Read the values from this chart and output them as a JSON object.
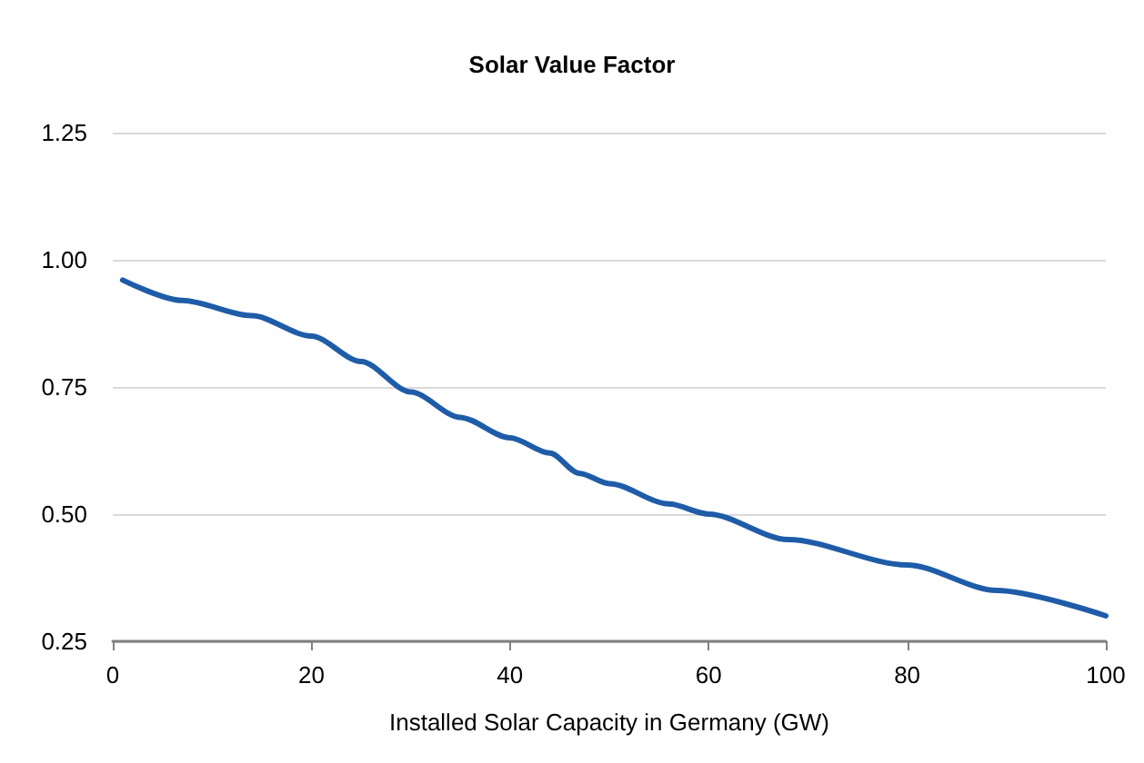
{
  "chart_data": {
    "type": "line",
    "title": "Solar Value Factor",
    "xlabel": "Installed Solar Capacity in Germany (GW)",
    "x": [
      1,
      7,
      14,
      20,
      25,
      30,
      35,
      40,
      44,
      47,
      50,
      56,
      60,
      68,
      80,
      89,
      100
    ],
    "series": [
      {
        "color": "#1f5ca8",
        "values": [
          0.96,
          0.92,
          0.89,
          0.85,
          0.8,
          0.74,
          0.69,
          0.65,
          0.62,
          0.58,
          0.56,
          0.52,
          0.5,
          0.45,
          0.4,
          0.35,
          0.3
        ]
      }
    ],
    "xlim": [
      0,
      100
    ],
    "xticks": [
      0,
      20,
      40,
      60,
      80,
      100
    ],
    "ylim": [
      0.25,
      1.25
    ],
    "yticks": [
      {
        "value": 0.25,
        "label": "0.25"
      },
      {
        "value": 0.5,
        "label": "0.50"
      },
      {
        "value": 0.75,
        "label": "0.75"
      },
      {
        "value": 1,
        "label": "1.00"
      },
      {
        "value": 1.25,
        "label": "1.25"
      }
    ],
    "grid": "y",
    "marker": "none",
    "line_style": "solid"
  }
}
